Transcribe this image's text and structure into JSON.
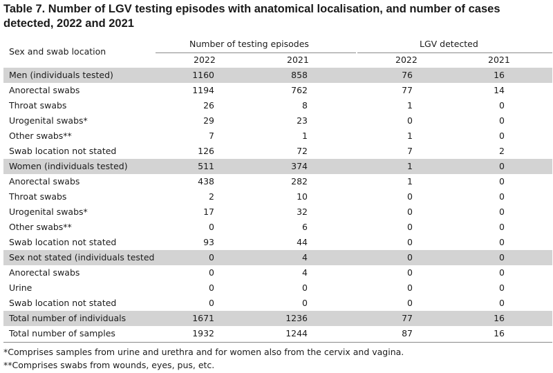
{
  "title": "Table 7. Number of LGV testing episodes with anatomical localisation, and number of cases detected, 2022 and 2021",
  "header": {
    "row_label": "Sex and swab location",
    "group1": "Number of testing episodes",
    "group2": "LGV detected",
    "years": [
      "2022",
      "2021",
      "2022",
      "2021"
    ]
  },
  "rows": [
    {
      "label": "Men (individuals tested)",
      "v": [
        "1160",
        "858",
        "76",
        "16"
      ],
      "shade": true
    },
    {
      "label": "Anorectal swabs",
      "v": [
        "1194",
        "762",
        "77",
        "14"
      ]
    },
    {
      "label": "Throat swabs",
      "v": [
        "26",
        "8",
        "1",
        "0"
      ]
    },
    {
      "label": "Urogenital swabs*",
      "v": [
        "29",
        "23",
        "0",
        "0"
      ]
    },
    {
      "label": "Other swabs**",
      "v": [
        "7",
        "1",
        "1",
        "0"
      ]
    },
    {
      "label": "Swab location not stated",
      "v": [
        "126",
        "72",
        "7",
        "2"
      ]
    },
    {
      "label": "Women (individuals tested)",
      "v": [
        "511",
        "374",
        "1",
        "0"
      ],
      "shade": true
    },
    {
      "label": "Anorectal swabs",
      "v": [
        "438",
        "282",
        "1",
        "0"
      ]
    },
    {
      "label": "Throat swabs",
      "v": [
        "2",
        "10",
        "0",
        "0"
      ]
    },
    {
      "label": "Urogenital swabs*",
      "v": [
        "17",
        "32",
        "0",
        "0"
      ]
    },
    {
      "label": "Other swabs**",
      "v": [
        "0",
        "6",
        "0",
        "0"
      ]
    },
    {
      "label": "Swab location not stated",
      "v": [
        "93",
        "44",
        "0",
        "0"
      ]
    },
    {
      "label": "Sex not stated (individuals tested",
      "v": [
        "0",
        "4",
        "0",
        "0"
      ],
      "shade": true
    },
    {
      "label": "Anorectal swabs",
      "v": [
        "0",
        "4",
        "0",
        "0"
      ]
    },
    {
      "label": "Urine",
      "v": [
        "0",
        "0",
        "0",
        "0"
      ]
    },
    {
      "label": "Swab location not stated",
      "v": [
        "0",
        "0",
        "0",
        "0"
      ]
    },
    {
      "label": "Total number of individuals",
      "v": [
        "1671",
        "1236",
        "77",
        "16"
      ],
      "shade": true
    },
    {
      "label": "Total number of samples",
      "v": [
        "1932",
        "1244",
        "87",
        "16"
      ]
    }
  ],
  "footnotes": [
    "*Comprises samples from urine and urethra and for women also from the cervix and vagina.",
    "**Comprises swabs from wounds, eyes, pus, etc."
  ]
}
